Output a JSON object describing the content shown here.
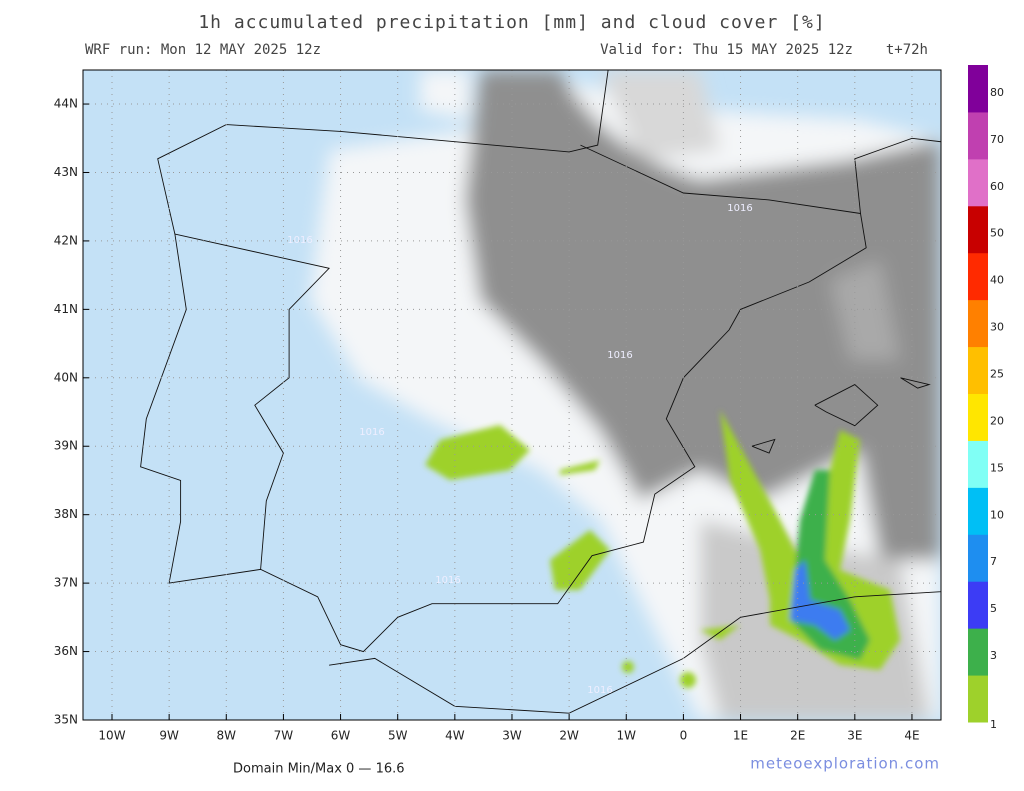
{
  "header": {
    "title": "1h accumulated precipitation [mm] and cloud cover [%]",
    "run": "WRF run: Mon 12 MAY 2025 12z",
    "valid": "Valid for: Thu 15 MAY 2025 12z",
    "step": "t+72h"
  },
  "map": {
    "lat_labels": [
      "35N",
      "36N",
      "37N",
      "38N",
      "39N",
      "40N",
      "41N",
      "42N",
      "43N",
      "44N"
    ],
    "lon_labels": [
      "10W",
      "9W",
      "8W",
      "7W",
      "6W",
      "5W",
      "4W",
      "3W",
      "2W",
      "1W",
      "0",
      "1E",
      "2E",
      "3E",
      "4E"
    ],
    "contour_labels": [
      "1016",
      "1016",
      "1016",
      "1016",
      "1016",
      "1016"
    ]
  },
  "colorbar": {
    "labels": [
      1,
      3,
      5,
      7,
      10,
      15,
      20,
      25,
      30,
      40,
      50,
      60,
      70,
      80
    ]
  },
  "footer": {
    "domain_minmax": "Domain Min/Max 0 — 16.6",
    "credit": "meteoexploration.com"
  }
}
